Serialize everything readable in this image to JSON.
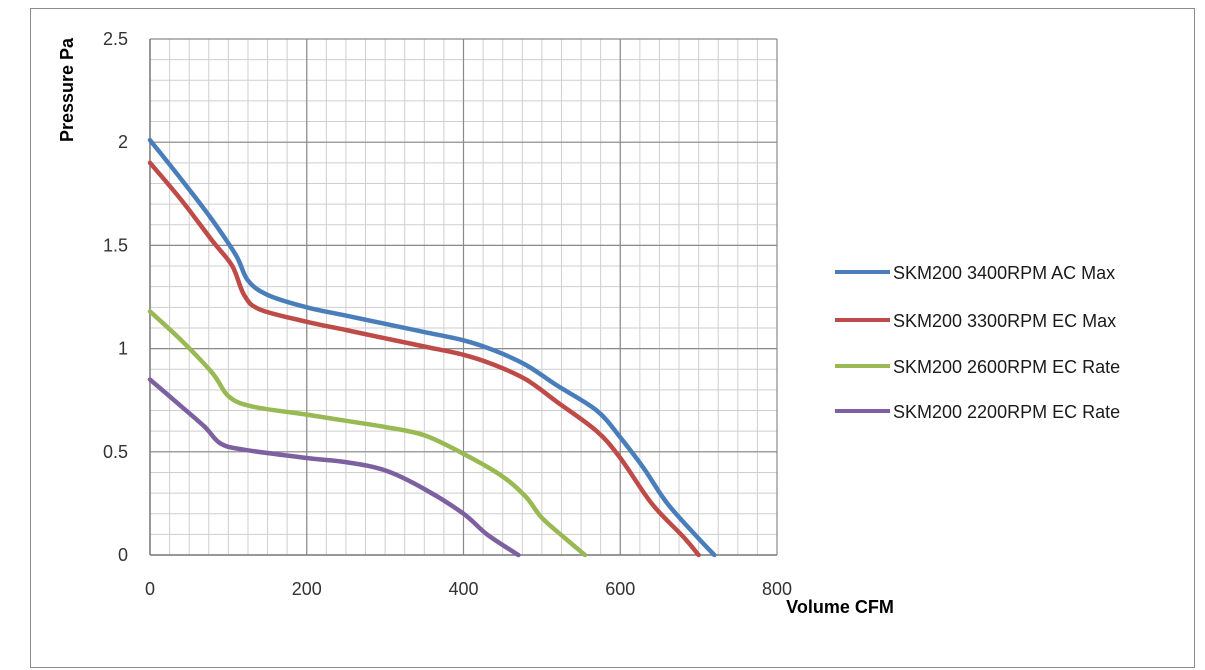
{
  "chart_data": {
    "type": "line",
    "title": "",
    "xlabel": "Volume CFM",
    "ylabel": "Pressure Pa",
    "xlim": [
      0,
      800
    ],
    "ylim": [
      0,
      2.5
    ],
    "x_ticks": [
      "0",
      "200",
      "400",
      "600",
      "800"
    ],
    "y_ticks": [
      "0",
      "0.5",
      "1",
      "1.5",
      "2",
      "2.5"
    ],
    "grid": true,
    "legend_position": "right",
    "series": [
      {
        "name": "SKM200 3400RPM AC Max",
        "color": "#4a7ebb",
        "points": [
          [
            0,
            2.01
          ],
          [
            40,
            1.82
          ],
          [
            80,
            1.62
          ],
          [
            110,
            1.45
          ],
          [
            125,
            1.33
          ],
          [
            150,
            1.26
          ],
          [
            200,
            1.2
          ],
          [
            250,
            1.16
          ],
          [
            300,
            1.12
          ],
          [
            350,
            1.08
          ],
          [
            400,
            1.04
          ],
          [
            440,
            0.99
          ],
          [
            480,
            0.92
          ],
          [
            520,
            0.82
          ],
          [
            570,
            0.7
          ],
          [
            600,
            0.57
          ],
          [
            630,
            0.42
          ],
          [
            660,
            0.25
          ],
          [
            700,
            0.08
          ],
          [
            720,
            0.0
          ]
        ]
      },
      {
        "name": "SKM200 3300RPM EC Max",
        "color": "#be4b48",
        "points": [
          [
            0,
            1.9
          ],
          [
            40,
            1.72
          ],
          [
            80,
            1.52
          ],
          [
            105,
            1.4
          ],
          [
            120,
            1.26
          ],
          [
            140,
            1.19
          ],
          [
            200,
            1.13
          ],
          [
            250,
            1.09
          ],
          [
            300,
            1.05
          ],
          [
            350,
            1.01
          ],
          [
            400,
            0.97
          ],
          [
            440,
            0.92
          ],
          [
            480,
            0.85
          ],
          [
            520,
            0.74
          ],
          [
            570,
            0.6
          ],
          [
            600,
            0.47
          ],
          [
            640,
            0.25
          ],
          [
            680,
            0.09
          ],
          [
            700,
            0.0
          ]
        ]
      },
      {
        "name": "SKM200 2600RPM EC Rate",
        "color": "#98b954",
        "points": [
          [
            0,
            1.18
          ],
          [
            40,
            1.04
          ],
          [
            80,
            0.88
          ],
          [
            100,
            0.77
          ],
          [
            130,
            0.72
          ],
          [
            200,
            0.68
          ],
          [
            250,
            0.65
          ],
          [
            300,
            0.62
          ],
          [
            350,
            0.58
          ],
          [
            400,
            0.49
          ],
          [
            450,
            0.38
          ],
          [
            480,
            0.28
          ],
          [
            500,
            0.18
          ],
          [
            530,
            0.08
          ],
          [
            555,
            0.0
          ]
        ]
      },
      {
        "name": "SKM200 2200RPM EC Rate",
        "color": "#7d60a0",
        "points": [
          [
            0,
            0.85
          ],
          [
            40,
            0.72
          ],
          [
            70,
            0.62
          ],
          [
            90,
            0.54
          ],
          [
            120,
            0.51
          ],
          [
            200,
            0.47
          ],
          [
            250,
            0.45
          ],
          [
            300,
            0.41
          ],
          [
            350,
            0.32
          ],
          [
            400,
            0.2
          ],
          [
            430,
            0.1
          ],
          [
            470,
            0.0
          ]
        ]
      }
    ]
  }
}
